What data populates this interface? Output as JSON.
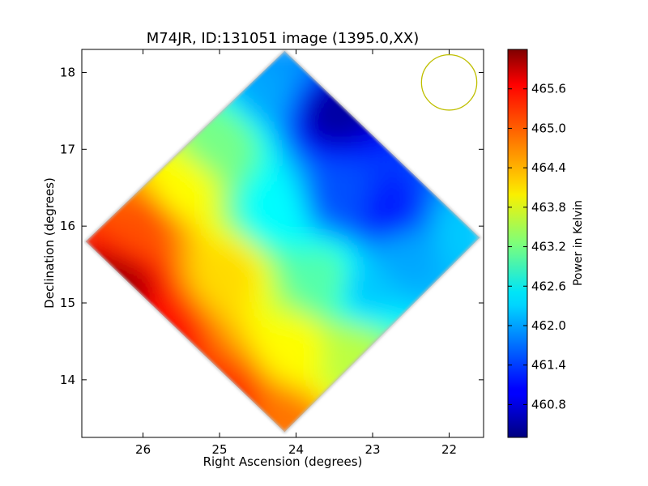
{
  "chart_data": {
    "type": "heatmap",
    "title": "M74JR, ID:131051 image (1395.0,XX)",
    "xlabel": "Right Ascension (degrees)",
    "ylabel": "Declination (degrees)",
    "x_reversed": true,
    "xlim": [
      26.8,
      21.55
    ],
    "ylim": [
      13.25,
      18.3
    ],
    "xticks": [
      26,
      25,
      24,
      23,
      22
    ],
    "yticks": [
      14,
      15,
      16,
      17,
      18
    ],
    "colorbar": {
      "label": "Power in Kelvin",
      "colormap": "jet",
      "range": [
        460.3,
        466.2
      ],
      "ticks": [
        "460.8",
        "461.4",
        "462.0",
        "462.6",
        "463.2",
        "463.8",
        "464.4",
        "465.0",
        "465.6"
      ]
    },
    "footprint_diamond": {
      "center": [
        24.15,
        15.75
      ],
      "vertices": [
        [
          24.15,
          18.28
        ],
        [
          21.6,
          15.85
        ],
        [
          24.15,
          13.32
        ],
        [
          26.75,
          15.8
        ]
      ]
    },
    "beam_circle": {
      "center": [
        22.0,
        17.87
      ],
      "radius_deg": 0.36,
      "color": "#bfbf00"
    },
    "values_description": "Power ranges from ~466 K at lower-left (RA 26.3, Dec 15.2) down to ~461 K at upper-right (RA 23.5, Dec 17.5)",
    "samples": [
      {
        "ra": 26.35,
        "dec": 15.2,
        "value": 466.0
      },
      {
        "ra": 25.8,
        "dec": 14.6,
        "value": 465.4
      },
      {
        "ra": 24.9,
        "dec": 13.7,
        "value": 465.2
      },
      {
        "ra": 24.2,
        "dec": 13.4,
        "value": 464.8
      },
      {
        "ra": 26.0,
        "dec": 16.0,
        "value": 465.0
      },
      {
        "ra": 25.5,
        "dec": 16.5,
        "value": 464.0
      },
      {
        "ra": 24.9,
        "dec": 15.4,
        "value": 464.2
      },
      {
        "ra": 24.0,
        "dec": 14.4,
        "value": 464.0
      },
      {
        "ra": 23.3,
        "dec": 14.3,
        "value": 463.6
      },
      {
        "ra": 25.0,
        "dec": 17.1,
        "value": 463.2
      },
      {
        "ra": 24.3,
        "dec": 16.2,
        "value": 462.5
      },
      {
        "ra": 23.6,
        "dec": 15.3,
        "value": 463.0
      },
      {
        "ra": 24.4,
        "dec": 17.8,
        "value": 462.0
      },
      {
        "ra": 24.1,
        "dec": 18.2,
        "value": 461.9
      },
      {
        "ra": 23.5,
        "dec": 17.5,
        "value": 460.5
      },
      {
        "ra": 23.4,
        "dec": 16.4,
        "value": 461.5
      },
      {
        "ra": 22.8,
        "dec": 16.2,
        "value": 461.2
      },
      {
        "ra": 22.6,
        "dec": 15.6,
        "value": 462.0
      },
      {
        "ra": 21.8,
        "dec": 15.9,
        "value": 462.2
      },
      {
        "ra": 23.1,
        "dec": 15.2,
        "value": 462.2
      }
    ]
  }
}
